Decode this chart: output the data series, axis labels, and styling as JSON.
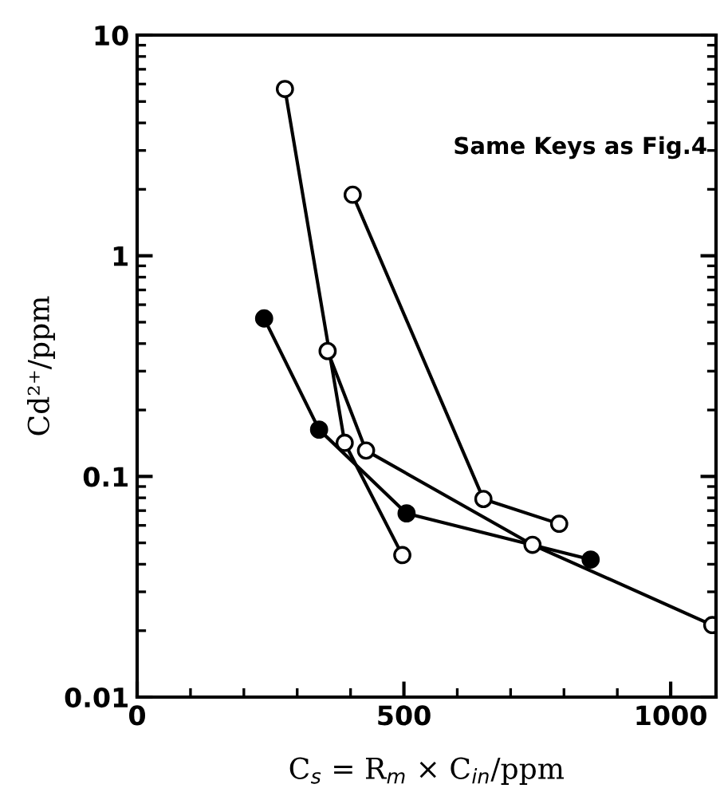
{
  "chart_data": {
    "type": "line",
    "xlabel": "C$_{s}$ = R$_{m}$ × C$_{in}$/ppm",
    "ylabel": "Cd²⁺/ppm",
    "annotations": [
      "Same Keys as Fig.4"
    ],
    "log": "y",
    "xlim": [
      0,
      1085
    ],
    "xticks": [
      0,
      500,
      1000
    ],
    "ylim": [
      0.01,
      10
    ],
    "yticks": [
      0.01,
      0.1,
      1,
      10
    ],
    "grid": false,
    "legend": false,
    "line_style": "solid",
    "series": [
      {
        "color": "#ffffff",
        "marker": "circle",
        "x": [
          277,
          389,
          497
        ],
        "values": [
          5.7,
          0.142,
          0.044
        ]
      },
      {
        "color": "#000000",
        "marker": "circle",
        "x": [
          238,
          341,
          505,
          850
        ],
        "values": [
          0.52,
          0.163,
          0.068,
          0.042
        ]
      },
      {
        "color": "#ffffff",
        "marker": "circle",
        "x": [
          357,
          429,
          741,
          1078
        ],
        "values": [
          0.37,
          0.131,
          0.049,
          0.0212
        ]
      },
      {
        "color": "#ffffff",
        "marker": "circle",
        "x": [
          404,
          649,
          791
        ],
        "values": [
          1.89,
          0.079,
          0.061
        ]
      }
    ]
  }
}
